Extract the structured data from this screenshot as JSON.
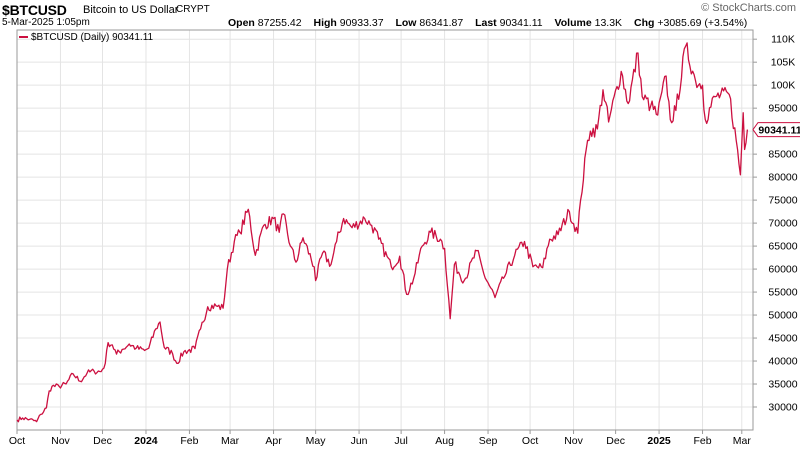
{
  "header": {
    "symbol": "$BTCUSD",
    "description": "Bitcoin to US Dollar",
    "exchange": "CRYPT",
    "date": "5-Mar-2025 1:05pm",
    "brand": "© StockCharts.com",
    "open_label": "Open",
    "open": "87255.42",
    "high_label": "High",
    "high": "90933.37",
    "low_label": "Low",
    "low": "86341.87",
    "last_label": "Last",
    "last": "90341.11",
    "volume_label": "Volume",
    "volume": "13.3K",
    "chg_label": "Chg",
    "chg": "+3085.69 (+3.54%)"
  },
  "legend": {
    "text": "$BTCUSD (Daily) 90341.11"
  },
  "colors": {
    "line": "#cc1040",
    "grid": "#e4e4e4",
    "axis": "#9a9a9a"
  },
  "chart_data": {
    "type": "line",
    "series": [
      {
        "name": "$BTCUSD (Daily)",
        "points": [
          [
            "2023-10-01",
            27200
          ],
          [
            "2023-10-05",
            27600
          ],
          [
            "2023-10-10",
            27300
          ],
          [
            "2023-10-15",
            26800
          ],
          [
            "2023-10-18",
            28400
          ],
          [
            "2023-10-22",
            29800
          ],
          [
            "2023-10-24",
            33500
          ],
          [
            "2023-10-26",
            34500
          ],
          [
            "2023-10-31",
            34500
          ],
          [
            "2023-11-05",
            35000
          ],
          [
            "2023-11-10",
            37200
          ],
          [
            "2023-11-15",
            35600
          ],
          [
            "2023-11-20",
            37400
          ],
          [
            "2023-11-25",
            37800
          ],
          [
            "2023-11-30",
            37700
          ],
          [
            "2023-12-03",
            39500
          ],
          [
            "2023-12-05",
            44000
          ],
          [
            "2023-12-08",
            43500
          ],
          [
            "2023-12-11",
            41500
          ],
          [
            "2023-12-15",
            42500
          ],
          [
            "2023-12-20",
            43700
          ],
          [
            "2023-12-25",
            42800
          ],
          [
            "2023-12-31",
            42300
          ],
          [
            "2024-01-03",
            42800
          ],
          [
            "2024-01-08",
            47000
          ],
          [
            "2024-01-11",
            48500
          ],
          [
            "2024-01-14",
            43000
          ],
          [
            "2024-01-20",
            41600
          ],
          [
            "2024-01-23",
            39500
          ],
          [
            "2024-01-28",
            42000
          ],
          [
            "2024-02-05",
            42700
          ],
          [
            "2024-02-09",
            47000
          ],
          [
            "2024-02-14",
            51800
          ],
          [
            "2024-02-20",
            52000
          ],
          [
            "2024-02-25",
            51500
          ],
          [
            "2024-02-28",
            60000
          ],
          [
            "2024-03-04",
            66000
          ],
          [
            "2024-03-08",
            68000
          ],
          [
            "2024-03-14",
            73000
          ],
          [
            "2024-03-19",
            63000
          ],
          [
            "2024-03-25",
            69500
          ],
          [
            "2024-04-01",
            71000
          ],
          [
            "2024-04-05",
            68000
          ],
          [
            "2024-04-08",
            72000
          ],
          [
            "2024-04-13",
            65000
          ],
          [
            "2024-04-17",
            61500
          ],
          [
            "2024-04-22",
            66800
          ],
          [
            "2024-04-30",
            60500
          ],
          [
            "2024-05-01",
            57500
          ],
          [
            "2024-05-06",
            63500
          ],
          [
            "2024-05-12",
            61000
          ],
          [
            "2024-05-16",
            66000
          ],
          [
            "2024-05-21",
            71000
          ],
          [
            "2024-05-27",
            69000
          ],
          [
            "2024-06-05",
            71000
          ],
          [
            "2024-06-10",
            69500
          ],
          [
            "2024-06-15",
            66500
          ],
          [
            "2024-06-24",
            60500
          ],
          [
            "2024-06-30",
            62800
          ],
          [
            "2024-07-05",
            54500
          ],
          [
            "2024-07-10",
            58000
          ],
          [
            "2024-07-16",
            65000
          ],
          [
            "2024-07-22",
            68000
          ],
          [
            "2024-07-29",
            66500
          ],
          [
            "2024-08-01",
            64500
          ],
          [
            "2024-08-05",
            49200
          ],
          [
            "2024-08-08",
            61000
          ],
          [
            "2024-08-15",
            57500
          ],
          [
            "2024-08-24",
            64000
          ],
          [
            "2024-08-29",
            59000
          ],
          [
            "2024-09-06",
            53800
          ],
          [
            "2024-09-12",
            58000
          ],
          [
            "2024-09-20",
            63000
          ],
          [
            "2024-09-27",
            66000
          ],
          [
            "2024-10-03",
            60500
          ],
          [
            "2024-10-10",
            60300
          ],
          [
            "2024-10-15",
            66500
          ],
          [
            "2024-10-21",
            67500
          ],
          [
            "2024-10-29",
            72500
          ],
          [
            "2024-11-04",
            67800
          ],
          [
            "2024-11-06",
            75000
          ],
          [
            "2024-11-11",
            88000
          ],
          [
            "2024-11-13",
            90000
          ],
          [
            "2024-11-18",
            90500
          ],
          [
            "2024-11-22",
            99000
          ],
          [
            "2024-11-26",
            92000
          ],
          [
            "2024-12-05",
            103000
          ],
          [
            "2024-12-10",
            96000
          ],
          [
            "2024-12-17",
            107000
          ],
          [
            "2024-12-20",
            97500
          ],
          [
            "2024-12-26",
            95500
          ],
          [
            "2024-12-31",
            93500
          ],
          [
            "2025-01-06",
            102000
          ],
          [
            "2025-01-09",
            92500
          ],
          [
            "2025-01-13",
            94500
          ],
          [
            "2025-01-20",
            108500
          ],
          [
            "2025-01-27",
            101000
          ],
          [
            "2025-02-01",
            100000
          ],
          [
            "2025-02-03",
            92500
          ],
          [
            "2025-02-10",
            97500
          ],
          [
            "2025-02-20",
            98000
          ],
          [
            "2025-02-25",
            88000
          ],
          [
            "2025-02-28",
            80500
          ],
          [
            "2025-03-02",
            94000
          ],
          [
            "2025-03-03",
            86000
          ],
          [
            "2025-03-04",
            87500
          ],
          [
            "2025-03-05",
            90341
          ]
        ]
      }
    ],
    "x_range": [
      "2023-10-01",
      "2025-03-09"
    ],
    "ylim": [
      25000,
      112000
    ],
    "y_ticks": [
      30000,
      35000,
      40000,
      45000,
      50000,
      55000,
      60000,
      65000,
      70000,
      75000,
      80000,
      85000,
      90000,
      95000,
      100000,
      105000,
      110000
    ],
    "y_tick_labels": [
      "30000",
      "35000",
      "40000",
      "45000",
      "50000",
      "55000",
      "60000",
      "65000",
      "70000",
      "75000",
      "80000",
      "85000",
      "90000",
      "95000",
      "100K",
      "105K",
      "110K"
    ],
    "x_ticks": [
      {
        "date": "2023-10-01",
        "label": "Oct",
        "bold": false
      },
      {
        "date": "2023-11-01",
        "label": "Nov",
        "bold": false
      },
      {
        "date": "2023-12-01",
        "label": "Dec",
        "bold": false
      },
      {
        "date": "2024-01-01",
        "label": "2024",
        "bold": true
      },
      {
        "date": "2024-02-01",
        "label": "Feb",
        "bold": false
      },
      {
        "date": "2024-03-01",
        "label": "Mar",
        "bold": false
      },
      {
        "date": "2024-04-01",
        "label": "Apr",
        "bold": false
      },
      {
        "date": "2024-05-01",
        "label": "May",
        "bold": false
      },
      {
        "date": "2024-06-01",
        "label": "Jun",
        "bold": false
      },
      {
        "date": "2024-07-01",
        "label": "Jul",
        "bold": false
      },
      {
        "date": "2024-08-01",
        "label": "Aug",
        "bold": false
      },
      {
        "date": "2024-09-01",
        "label": "Sep",
        "bold": false
      },
      {
        "date": "2024-10-01",
        "label": "Oct",
        "bold": false
      },
      {
        "date": "2024-11-01",
        "label": "Nov",
        "bold": false
      },
      {
        "date": "2024-12-01",
        "label": "Dec",
        "bold": false
      },
      {
        "date": "2025-01-01",
        "label": "2025",
        "bold": true
      },
      {
        "date": "2025-02-01",
        "label": "Feb",
        "bold": false
      },
      {
        "date": "2025-03-01",
        "label": "Mar",
        "bold": false
      }
    ],
    "last_value": 90341.11,
    "last_value_label": "90341.11",
    "grid": true
  }
}
